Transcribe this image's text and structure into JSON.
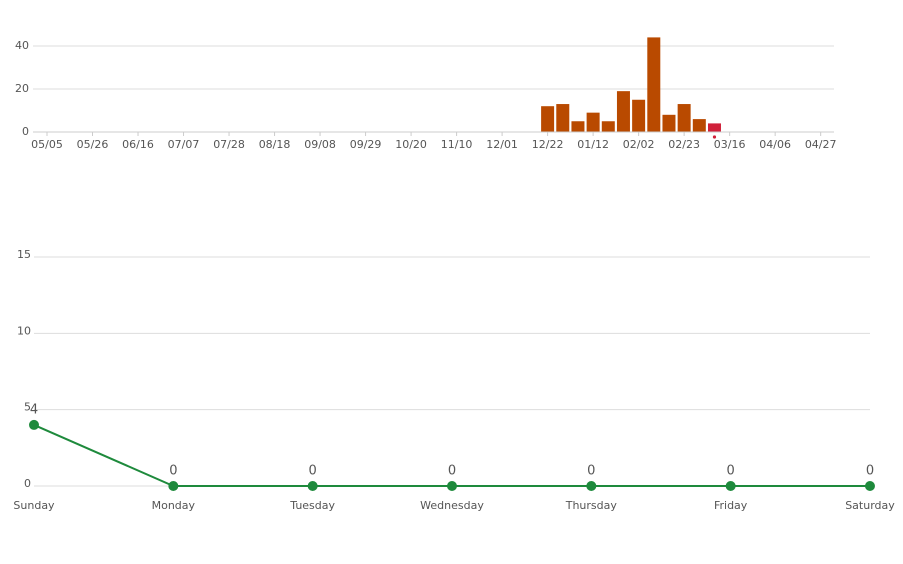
{
  "chart_data": [
    {
      "type": "bar",
      "categories": [
        "05/05",
        null,
        null,
        "05/26",
        null,
        null,
        "06/16",
        null,
        null,
        "07/07",
        null,
        null,
        "07/28",
        null,
        null,
        "08/18",
        null,
        null,
        "09/08",
        null,
        null,
        "09/29",
        null,
        null,
        "10/20",
        null,
        null,
        "11/10",
        null,
        null,
        "12/01",
        null,
        null,
        "12/22",
        null,
        null,
        "01/12",
        null,
        null,
        "02/02",
        null,
        null,
        "02/23",
        null,
        null,
        "03/16",
        null,
        null,
        "04/06",
        null,
        null,
        "04/27"
      ],
      "values": [
        null,
        null,
        null,
        null,
        null,
        null,
        null,
        null,
        null,
        null,
        null,
        null,
        null,
        null,
        null,
        null,
        null,
        null,
        null,
        null,
        null,
        null,
        null,
        null,
        null,
        null,
        null,
        null,
        null,
        null,
        null,
        null,
        null,
        12,
        13,
        5,
        9,
        5,
        19,
        15,
        44,
        8,
        13,
        6,
        4,
        null,
        null,
        null,
        null,
        null,
        null,
        null
      ],
      "color": "#b94a00",
      "highlight": {
        "index": 44,
        "color": "#d0203a"
      },
      "ylim": [
        0,
        45
      ],
      "yticks": [
        0,
        20,
        40
      ],
      "grid": true
    },
    {
      "type": "line",
      "categories": [
        "Sunday",
        "Monday",
        "Tuesday",
        "Wednesday",
        "Thursday",
        "Friday",
        "Saturday"
      ],
      "values": [
        4,
        0,
        0,
        0,
        0,
        0,
        0
      ],
      "color": "#1e8a3c",
      "ylim": [
        0,
        15
      ],
      "yticks": [
        0,
        5,
        10,
        15
      ],
      "grid": true
    }
  ]
}
